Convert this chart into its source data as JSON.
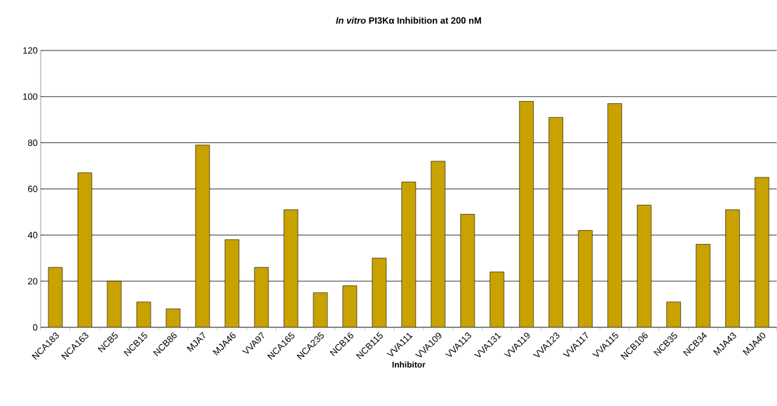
{
  "chart_data": {
    "type": "bar",
    "title": "*In vitro* PI3Kα Inhibition at 200 nM",
    "xlabel": "Inhibitor",
    "categories": [
      "NCA183",
      "NCA163",
      "NCB5",
      "NCB15",
      "NCB86",
      "MJA7",
      "MJA46",
      "VVA97",
      "NCA165",
      "NCA235",
      "NCB16",
      "NCB115",
      "VVA111",
      "VVA109",
      "VVA113",
      "VVA131",
      "VVA119",
      "VVA123",
      "VVA117",
      "VVA115",
      "NCB106",
      "NCB35",
      "NCB34",
      "MJA43",
      "MJA40"
    ],
    "values": [
      26,
      67,
      20,
      11,
      8,
      79,
      38,
      26,
      51,
      15,
      18,
      30,
      63,
      72,
      49,
      24,
      98,
      91,
      42,
      97,
      53,
      11,
      36,
      51,
      65
    ],
    "color": "#c9a200",
    "ylim": [
      0,
      120
    ],
    "yticks": [
      0,
      20,
      40,
      60,
      80,
      100,
      120
    ],
    "grid": "y"
  }
}
